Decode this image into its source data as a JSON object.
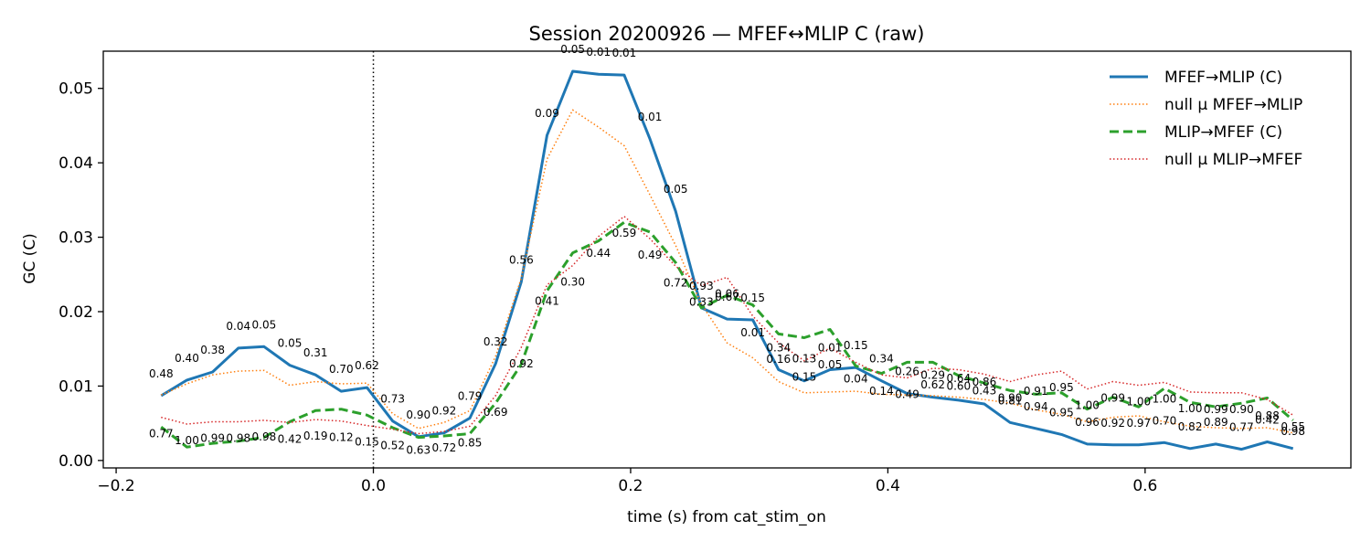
{
  "chart_data": {
    "type": "line",
    "title": "Session 20200926 — MFEF↔MLIP C (raw)",
    "xlabel": "time (s) from cat_stim_on",
    "ylabel": "GC (C)",
    "xlim": [
      -0.21,
      0.76
    ],
    "ylim": [
      -0.001,
      0.055
    ],
    "xticks": [
      -0.2,
      0.0,
      0.2,
      0.4,
      0.6
    ],
    "xtick_labels": [
      "−0.2",
      "0.0",
      "0.2",
      "0.4",
      "0.6"
    ],
    "yticks": [
      0.0,
      0.01,
      0.02,
      0.03,
      0.04,
      0.05
    ],
    "ytick_labels": [
      "0.00",
      "0.01",
      "0.02",
      "0.03",
      "0.04",
      "0.05"
    ],
    "grid": false,
    "legend_position": "top-right",
    "event_line_x": 0.0,
    "x": [
      -0.165,
      -0.145,
      -0.125,
      -0.105,
      -0.085,
      -0.065,
      -0.045,
      -0.025,
      -0.005,
      0.015,
      0.035,
      0.055,
      0.075,
      0.095,
      0.115,
      0.135,
      0.155,
      0.175,
      0.195,
      0.215,
      0.235,
      0.255,
      0.275,
      0.295,
      0.315,
      0.335,
      0.355,
      0.375,
      0.395,
      0.415,
      0.435,
      0.455,
      0.475,
      0.495,
      0.515,
      0.535,
      0.555,
      0.575,
      0.595,
      0.615,
      0.635,
      0.655,
      0.675,
      0.695,
      0.715
    ],
    "series": [
      {
        "name": "MFEF→MLIP (C)",
        "color": "#1f77b4",
        "style": "solid",
        "values": [
          0.0087,
          0.0108,
          0.0119,
          0.0151,
          0.0153,
          0.0128,
          0.0115,
          0.0093,
          0.0098,
          0.0053,
          0.0032,
          0.0037,
          0.0057,
          0.013,
          0.024,
          0.0437,
          0.0523,
          0.0519,
          0.0518,
          0.0432,
          0.0335,
          0.0205,
          0.019,
          0.0189,
          0.0122,
          0.0107,
          0.0122,
          0.0125,
          0.0107,
          0.009,
          0.0085,
          0.0081,
          0.0076,
          0.0051,
          0.0043,
          0.0035,
          0.0022,
          0.0021,
          0.0021,
          0.0024,
          0.0016,
          0.0022,
          0.0015,
          0.0025,
          0.0016
        ],
        "pvalues": [
          "0.48",
          "0.40",
          "0.38",
          "0.04",
          "0.05",
          "0.05",
          "0.31",
          "0.70",
          "0.62",
          "0.73",
          "0.90",
          "0.92",
          "0.79",
          "0.32",
          "0.56",
          "0.09",
          "0.05",
          "0.01",
          "0.01",
          "0.01",
          "0.05",
          "0.93",
          "0.67",
          "0.15",
          "0.34",
          "0.13",
          "0.01",
          "0.15",
          "0.34",
          "0.26",
          "0.29",
          "0.64",
          "0.86",
          "0.81",
          "0.94",
          "0.95",
          "0.96",
          "0.92",
          "0.97",
          "0.70",
          "0.82",
          "0.89",
          "0.77",
          "0.42",
          "0.55"
        ]
      },
      {
        "name": "null μ MFEF→MLIP",
        "color": "#ff7f0e",
        "style": "dotted",
        "values": [
          0.0088,
          0.0103,
          0.0115,
          0.012,
          0.0121,
          0.0101,
          0.0106,
          0.0103,
          0.0104,
          0.0063,
          0.0043,
          0.0051,
          0.0067,
          0.014,
          0.0245,
          0.0405,
          0.0471,
          0.0448,
          0.0423,
          0.0357,
          0.0289,
          0.021,
          0.0158,
          0.0138,
          0.0106,
          0.0091,
          0.0092,
          0.0093,
          0.0089,
          0.0088,
          0.0087,
          0.0085,
          0.0082,
          0.0077,
          0.0068,
          0.0062,
          0.0052,
          0.0058,
          0.006,
          0.0052,
          0.0046,
          0.0044,
          0.0043,
          0.0044,
          0.0037
        ]
      },
      {
        "name": "MLIP→MFEF (C)",
        "color": "#2ca02c",
        "style": "dashed",
        "values": [
          0.0045,
          0.0018,
          0.0023,
          0.0026,
          0.0031,
          0.0052,
          0.0067,
          0.0069,
          0.0061,
          0.0044,
          0.0031,
          0.0033,
          0.0036,
          0.0077,
          0.0129,
          0.0228,
          0.0279,
          0.0295,
          0.032,
          0.0307,
          0.0266,
          0.0205,
          0.0222,
          0.0209,
          0.017,
          0.0165,
          0.0176,
          0.0127,
          0.0117,
          0.0132,
          0.0132,
          0.0114,
          0.0104,
          0.0094,
          0.0089,
          0.0091,
          0.0069,
          0.0085,
          0.0072,
          0.0097,
          0.0078,
          0.0072,
          0.0077,
          0.0084,
          0.0054
        ]
      },
      {
        "name": "null μ MLIP→MFEF",
        "color": "#d62728",
        "style": "dotted",
        "values": [
          0.0058,
          0.0049,
          0.0052,
          0.0052,
          0.0054,
          0.0051,
          0.0055,
          0.0053,
          0.0047,
          0.0042,
          0.0036,
          0.0039,
          0.0046,
          0.0087,
          0.0152,
          0.0236,
          0.0262,
          0.0301,
          0.0328,
          0.0298,
          0.0261,
          0.0235,
          0.0246,
          0.0194,
          0.0158,
          0.0134,
          0.0151,
          0.0132,
          0.0115,
          0.0111,
          0.0124,
          0.0122,
          0.0116,
          0.0106,
          0.0115,
          0.012,
          0.0096,
          0.0106,
          0.0101,
          0.0105,
          0.0092,
          0.0091,
          0.0091,
          0.0082,
          0.0061
        ],
        "pvalues": [
          "0.77",
          "1.00",
          "0.99",
          "0.98",
          "0.98",
          "0.42",
          "0.19",
          "0.12",
          "0.15",
          "0.52",
          "0.63",
          "0.72",
          "0.85",
          "0.69",
          "0.92",
          "0.41",
          "0.30",
          "0.44",
          "0.59",
          "0.49",
          "0.72",
          "0.33",
          "0.06",
          "0.01",
          "0.16",
          "0.15",
          "0.05",
          "0.04",
          "0.14",
          "0.49",
          "0.62",
          "0.60",
          "0.43",
          "0.90",
          "0.91",
          "0.95",
          "1.00",
          "0.99",
          "1.00",
          "1.00",
          "1.00",
          "0.99",
          "0.90",
          "0.88",
          "0.98"
        ]
      }
    ]
  }
}
